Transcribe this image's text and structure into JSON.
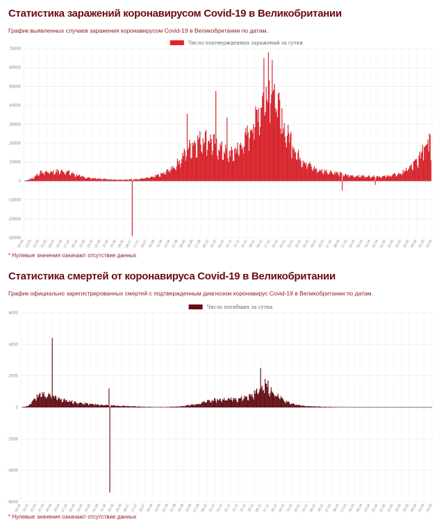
{
  "cases": {
    "title": "Статистика заражений коронавирусом Covid-19 в Великобритании",
    "subtitle": "График выявленных случаев заражения коронавирусом Covid-19 в Великобритании по датам.",
    "note": "* Нулевые значения означают отсутствие данных",
    "colors": {
      "bar": "#e8202a",
      "bar_edge": "#9a0e16",
      "legend": "#e8202a"
    },
    "chart_data": {
      "type": "bar",
      "legend": [
        "Число подтвержденных заражений за сутки"
      ],
      "legend_position": "top-center",
      "grid": true,
      "ylim": [
        -30000,
        70000
      ],
      "yticks": [
        -30000,
        -20000,
        -10000,
        0,
        10000,
        20000,
        30000,
        40000,
        50000,
        60000,
        70000
      ],
      "xticks": [
        "04.03",
        "13.03",
        "22.03",
        "31.03",
        "09.04",
        "18.04",
        "27.04",
        "06.05",
        "15.05",
        "24.05",
        "02.06",
        "11.06",
        "20.06",
        "29.06",
        "08.07",
        "17.07",
        "26.07",
        "04.08",
        "13.08",
        "22.08",
        "31.08",
        "09.09",
        "18.09",
        "27.09",
        "06.10",
        "15.10",
        "24.10",
        "02.11",
        "11.11",
        "20.11",
        "29.11",
        "08.12",
        "17.12",
        "26.12",
        "04.01",
        "13.01",
        "22.01",
        "31.01",
        "09.02",
        "18.02",
        "27.02",
        "08.03",
        "17.03",
        "26.03",
        "04.04",
        "13.04",
        "22.04",
        "01.05",
        "10.05",
        "19.05",
        "28.05",
        "06.06",
        "15.06",
        "24.06"
      ],
      "series": [
        {
          "name": "Число подтвержденных заражений за сутки",
          "profile": [
            [
              0,
              0
            ],
            [
              12,
              1500
            ],
            [
              20,
              4500
            ],
            [
              30,
              5000
            ],
            [
              40,
              5200
            ],
            [
              55,
              5500
            ],
            [
              65,
              4000
            ],
            [
              80,
              2000
            ],
            [
              100,
              1200
            ],
            [
              118,
              800
            ],
            [
              130,
              700
            ],
            [
              150,
              1000
            ],
            [
              170,
              2000
            ],
            [
              185,
              4000
            ],
            [
              200,
              8000
            ],
            [
              210,
              13000
            ],
            [
              222,
              20000
            ],
            [
              240,
              24000
            ],
            [
              250,
              22000
            ],
            [
              265,
              17000
            ],
            [
              275,
              15000
            ],
            [
              290,
              20000
            ],
            [
              305,
              32000
            ],
            [
              315,
              42000
            ],
            [
              322,
              50000
            ],
            [
              328,
              56000
            ],
            [
              335,
              45000
            ],
            [
              345,
              30000
            ],
            [
              355,
              22000
            ],
            [
              365,
              14000
            ],
            [
              375,
              10000
            ],
            [
              390,
              6000
            ],
            [
              410,
              5000
            ],
            [
              430,
              3000
            ],
            [
              460,
              2500
            ],
            [
              480,
              2500
            ],
            [
              500,
              4000
            ],
            [
              515,
              8000
            ],
            [
              525,
              12000
            ],
            [
              535,
              22000
            ],
            [
              540,
              26000
            ],
            [
              542,
              0
            ]
          ],
          "spikes": [
            [
              144,
              -29000
            ],
            [
              217,
              35500
            ],
            [
              255,
              47500
            ],
            [
              270,
              33500
            ],
            [
              319,
              65000
            ],
            [
              325,
              68000
            ],
            [
              330,
              64000
            ],
            [
              355,
              26000
            ],
            [
              423,
              -5000
            ],
            [
              467,
              -2000
            ],
            [
              530,
              19000
            ],
            [
              537,
              22000
            ],
            [
              539,
              25000
            ]
          ]
        }
      ]
    }
  },
  "deaths": {
    "title": "Статистика смертей от коронавируса Covid-19 в Великобритании",
    "subtitle": "График официально зарегистрированных смертей с подтвержденным диагнозом коронавирус Covid-19 в Великобритании по датам.",
    "note": "* Нулевые значения означают отсутствие данных",
    "colors": {
      "bar": "#6b0a14",
      "bar_edge": "#3a0308",
      "legend": "#6b0a14"
    },
    "chart_data": {
      "type": "bar",
      "legend": [
        "Число погибших за сутки"
      ],
      "legend_position": "top-center",
      "grid": true,
      "ylim": [
        -6000,
        6000
      ],
      "yticks": [
        -6000,
        -4000,
        -2000,
        0,
        2000,
        4000,
        6000
      ],
      "xticks": [
        "04.03",
        "13.03",
        "22.03",
        "31.03",
        "09.04",
        "18.04",
        "27.04",
        "06.05",
        "15.05",
        "24.05",
        "02.06",
        "11.06",
        "20.06",
        "29.06",
        "08.07",
        "17.07",
        "26.07",
        "04.08",
        "13.08",
        "22.08",
        "31.08",
        "09.09",
        "18.09",
        "27.09",
        "06.10",
        "15.10",
        "24.10",
        "02.11",
        "11.11",
        "20.11",
        "29.11",
        "08.12",
        "17.12",
        "26.12",
        "04.01",
        "13.01",
        "22.01",
        "31.01",
        "09.02",
        "18.02",
        "27.02",
        "08.03",
        "17.03",
        "26.03",
        "04.04",
        "13.04",
        "22.04",
        "01.05",
        "10.05",
        "19.05",
        "28.05",
        "06.06",
        "15.06",
        "24.06"
      ],
      "series": [
        {
          "name": "Число погибших за сутки",
          "profile": [
            [
              0,
              0
            ],
            [
              10,
              100
            ],
            [
              18,
              600
            ],
            [
              25,
              900
            ],
            [
              35,
              800
            ],
            [
              45,
              650
            ],
            [
              60,
              450
            ],
            [
              75,
              300
            ],
            [
              90,
              220
            ],
            [
              110,
              150
            ],
            [
              130,
              100
            ],
            [
              150,
              60
            ],
            [
              165,
              30
            ],
            [
              190,
              20
            ],
            [
              210,
              60
            ],
            [
              230,
              200
            ],
            [
              250,
              450
            ],
            [
              270,
              550
            ],
            [
              290,
              600
            ],
            [
              305,
              800
            ],
            [
              315,
              1200
            ],
            [
              322,
              1400
            ],
            [
              330,
              1100
            ],
            [
              340,
              700
            ],
            [
              350,
              400
            ],
            [
              360,
              200
            ],
            [
              375,
              80
            ],
            [
              400,
              30
            ],
            [
              440,
              10
            ],
            [
              500,
              10
            ],
            [
              542,
              8
            ]
          ],
          "spikes": [
            [
              41,
              4400
            ],
            [
              116,
              1200
            ],
            [
              117,
              -5400
            ],
            [
              316,
              2500
            ],
            [
              322,
              1800
            ],
            [
              326,
              1700
            ]
          ]
        }
      ]
    }
  }
}
